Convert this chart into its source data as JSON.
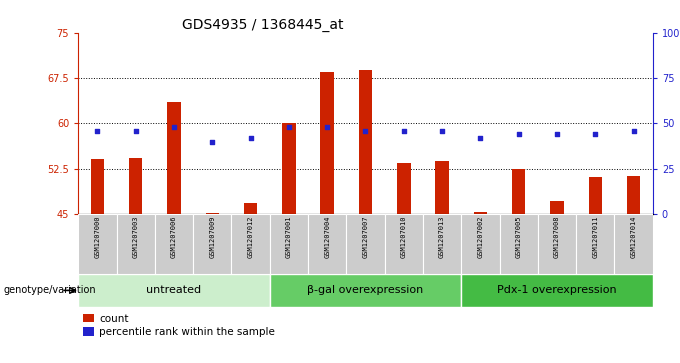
{
  "title": "GDS4935 / 1368445_at",
  "samples": [
    "GSM1207000",
    "GSM1207003",
    "GSM1207006",
    "GSM1207009",
    "GSM1207012",
    "GSM1207001",
    "GSM1207004",
    "GSM1207007",
    "GSM1207010",
    "GSM1207013",
    "GSM1207002",
    "GSM1207005",
    "GSM1207008",
    "GSM1207011",
    "GSM1207014"
  ],
  "counts": [
    54.2,
    54.3,
    63.5,
    45.2,
    46.8,
    60.1,
    68.5,
    68.8,
    53.5,
    53.8,
    45.3,
    52.5,
    47.2,
    51.2,
    51.3
  ],
  "percentiles": [
    46,
    46,
    48,
    40,
    42,
    48,
    48,
    46,
    46,
    46,
    42,
    44,
    44,
    44,
    46
  ],
  "groups": [
    {
      "label": "untreated",
      "start": 0,
      "end": 5,
      "color": "#cceecc"
    },
    {
      "label": "β-gal overexpression",
      "start": 5,
      "end": 10,
      "color": "#66cc66"
    },
    {
      "label": "Pdx-1 overexpression",
      "start": 10,
      "end": 15,
      "color": "#44bb44"
    }
  ],
  "ylim_left": [
    45,
    75
  ],
  "ylim_right": [
    0,
    100
  ],
  "yticks_left": [
    45,
    52.5,
    60,
    67.5,
    75
  ],
  "yticks_right": [
    0,
    25,
    50,
    75,
    100
  ],
  "ytick_labels_left": [
    "45",
    "52.5",
    "60",
    "67.5",
    "75"
  ],
  "ytick_labels_right": [
    "0",
    "25",
    "50",
    "75",
    "100%"
  ],
  "bar_color": "#cc2200",
  "dot_color": "#2222cc",
  "bar_width": 0.35,
  "grid_lines": [
    52.5,
    60,
    67.5
  ],
  "sample_bg_color": "#cccccc",
  "genotype_label": "genotype/variation",
  "legend_count": "count",
  "legend_percentile": "percentile rank within the sample",
  "title_fontsize": 10,
  "axis_fontsize": 7,
  "sample_fontsize": 5,
  "group_fontsize": 8
}
